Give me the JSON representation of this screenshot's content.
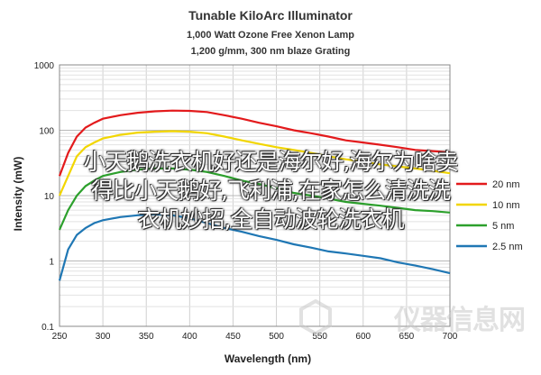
{
  "chart_data": {
    "type": "line",
    "title": "Tunable KiloArc Illuminator",
    "subtitle_1": "1,000 Watt Ozone Free Xenon Lamp",
    "subtitle_2": "1,200 g/mm, 300 nm blaze Grating",
    "xlabel": "Wavelength (nm)",
    "ylabel": "Intensity (mW)",
    "xlim": [
      250,
      700
    ],
    "ylim": [
      0.1,
      1000
    ],
    "yscale": "log",
    "grid": true,
    "legend_position": "right",
    "x_ticks": [
      "250",
      "300",
      "350",
      "400",
      "450",
      "500",
      "550",
      "600",
      "650",
      "700"
    ],
    "y_ticks": [
      "0.1",
      "1",
      "10",
      "100",
      "1000"
    ],
    "series": [
      {
        "name": "20 nm",
        "color": "#e31a1c",
        "points": [
          [
            250,
            20
          ],
          [
            260,
            45
          ],
          [
            270,
            80
          ],
          [
            280,
            110
          ],
          [
            290,
            130
          ],
          [
            300,
            150
          ],
          [
            320,
            170
          ],
          [
            340,
            185
          ],
          [
            360,
            195
          ],
          [
            380,
            200
          ],
          [
            400,
            198
          ],
          [
            420,
            190
          ],
          [
            440,
            170
          ],
          [
            460,
            150
          ],
          [
            480,
            130
          ],
          [
            500,
            115
          ],
          [
            520,
            100
          ],
          [
            540,
            90
          ],
          [
            560,
            80
          ],
          [
            580,
            70
          ],
          [
            600,
            65
          ],
          [
            620,
            60
          ],
          [
            640,
            55
          ],
          [
            660,
            50
          ],
          [
            680,
            48
          ],
          [
            700,
            46
          ]
        ]
      },
      {
        "name": "10 nm",
        "color": "#f2d600",
        "points": [
          [
            250,
            10
          ],
          [
            260,
            20
          ],
          [
            270,
            40
          ],
          [
            280,
            55
          ],
          [
            290,
            65
          ],
          [
            300,
            75
          ],
          [
            320,
            85
          ],
          [
            340,
            92
          ],
          [
            360,
            95
          ],
          [
            380,
            97
          ],
          [
            400,
            95
          ],
          [
            420,
            90
          ],
          [
            440,
            80
          ],
          [
            460,
            70
          ],
          [
            480,
            62
          ],
          [
            500,
            55
          ],
          [
            520,
            50
          ],
          [
            540,
            45
          ],
          [
            560,
            40
          ],
          [
            580,
            36
          ],
          [
            600,
            33
          ],
          [
            620,
            30
          ],
          [
            640,
            28
          ],
          [
            660,
            26
          ],
          [
            680,
            24
          ],
          [
            700,
            22
          ]
        ]
      },
      {
        "name": "5 nm",
        "color": "#2ca02c",
        "points": [
          [
            250,
            3
          ],
          [
            260,
            6
          ],
          [
            270,
            10
          ],
          [
            280,
            14
          ],
          [
            290,
            17
          ],
          [
            300,
            20
          ],
          [
            320,
            23
          ],
          [
            340,
            25
          ],
          [
            360,
            26
          ],
          [
            380,
            26
          ],
          [
            400,
            25
          ],
          [
            420,
            23
          ],
          [
            440,
            20
          ],
          [
            460,
            17
          ],
          [
            480,
            15
          ],
          [
            500,
            13
          ],
          [
            520,
            11
          ],
          [
            540,
            10
          ],
          [
            560,
            9
          ],
          [
            580,
            8
          ],
          [
            600,
            7.5
          ],
          [
            620,
            7
          ],
          [
            640,
            6.5
          ],
          [
            660,
            6
          ],
          [
            680,
            5.8
          ],
          [
            700,
            5.5
          ]
        ]
      },
      {
        "name": "2.5 nm",
        "color": "#1f77b4",
        "points": [
          [
            250,
            0.5
          ],
          [
            260,
            1.5
          ],
          [
            270,
            2.5
          ],
          [
            280,
            3.2
          ],
          [
            290,
            3.8
          ],
          [
            300,
            4.2
          ],
          [
            320,
            4.7
          ],
          [
            340,
            5
          ],
          [
            360,
            5.2
          ],
          [
            380,
            5
          ],
          [
            400,
            4.5
          ],
          [
            420,
            3.8
          ],
          [
            440,
            3.2
          ],
          [
            460,
            2.8
          ],
          [
            480,
            2.4
          ],
          [
            500,
            2.1
          ],
          [
            520,
            1.8
          ],
          [
            540,
            1.6
          ],
          [
            560,
            1.4
          ],
          [
            580,
            1.3
          ],
          [
            600,
            1.2
          ],
          [
            620,
            1.1
          ],
          [
            640,
            0.95
          ],
          [
            660,
            0.85
          ],
          [
            680,
            0.75
          ],
          [
            700,
            0.65
          ]
        ]
      }
    ]
  },
  "overlay": {
    "line1": "小天鹅洗衣机好还是海尔好,海尔为啥卖",
    "line2": "得比小天鹅好,飞利浦,在家怎么清洗洗",
    "line3": "衣机妙招,全自动波轮洗衣机"
  },
  "watermark": {
    "text": "仪器信息网"
  }
}
